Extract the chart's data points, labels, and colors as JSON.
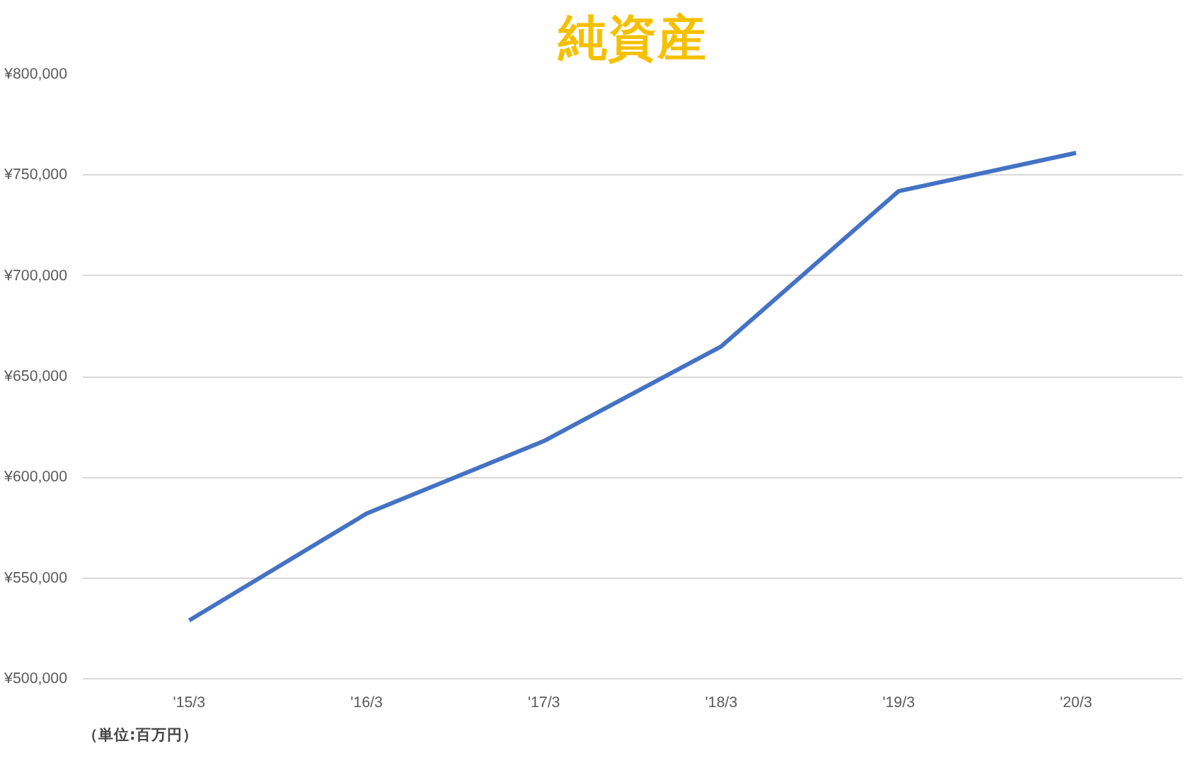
{
  "chart_data": {
    "type": "line",
    "title": "純資産",
    "categories": [
      "'15/3",
      "'16/3",
      "'17/3",
      "'18/3",
      "'19/3",
      "'20/3"
    ],
    "series": [
      {
        "color": "#4472c4",
        "values": [
          529000,
          582000,
          618000,
          665000,
          742000,
          761000
        ]
      }
    ],
    "ylim": [
      500000,
      800000
    ],
    "yticks": [
      {
        "value": 500000,
        "label": "¥500,000"
      },
      {
        "value": 550000,
        "label": "¥550,000"
      },
      {
        "value": 600000,
        "label": "¥600,000"
      },
      {
        "value": 650000,
        "label": "¥650,000"
      },
      {
        "value": 700000,
        "label": "¥700,000"
      },
      {
        "value": 750000,
        "label": "¥750,000"
      },
      {
        "value": 800000,
        "label": "¥800,000"
      }
    ],
    "grid": "y",
    "marker": "none",
    "line_style": "solid",
    "annotations": [
      "（単位:百万円）"
    ]
  }
}
